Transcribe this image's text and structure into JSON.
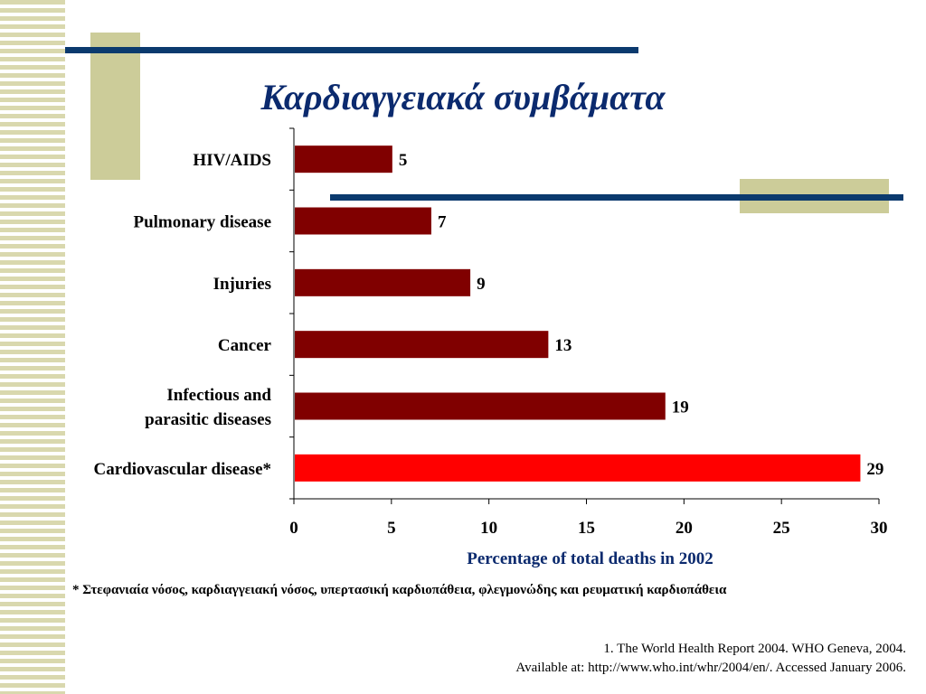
{
  "title": "Καρδιαγγειακά συμβάματα",
  "colors": {
    "stripe": "#d9d8ae",
    "accent_block": "#cccc99",
    "navy": "#0b3a6e",
    "bar_default": "#800000",
    "bar_highlight": "#ff0000"
  },
  "chart_data": {
    "type": "bar",
    "orientation": "horizontal",
    "categories": [
      "HIV/AIDS",
      "Pulmonary disease",
      "Injuries",
      "Cancer",
      "Infectious and parasitic diseases",
      "Cardiovascular disease*"
    ],
    "category_lines": [
      [
        "HIV/AIDS"
      ],
      [
        "Pulmonary disease"
      ],
      [
        "Injuries"
      ],
      [
        "Cancer"
      ],
      [
        "Infectious and",
        "parasitic diseases"
      ],
      [
        "Cardiovascular disease*"
      ]
    ],
    "values": [
      5,
      7,
      9,
      13,
      19,
      29
    ],
    "data_labels": [
      "5",
      "7",
      "9",
      "13",
      "19",
      "29"
    ],
    "highlighted_category": "Cardiovascular disease*",
    "xlabel": "Percentage of total deaths in 2002",
    "xlim": [
      0,
      30
    ],
    "x_ticks": [
      0,
      5,
      10,
      15,
      20,
      25,
      30
    ],
    "grid": false,
    "legend": "none"
  },
  "footnote": "* Στεφανιαία νόσος, καρδιαγγειακή νόσος, υπερτασική καρδιοπάθεια, φλεγμονώδης και ρευματική καρδιοπάθεια",
  "source_line1": "1. The World Health Report 2004. WHO Geneva, 2004.",
  "source_line2": "Available at: http://www.who.int/whr/2004/en/. Accessed January 2006."
}
